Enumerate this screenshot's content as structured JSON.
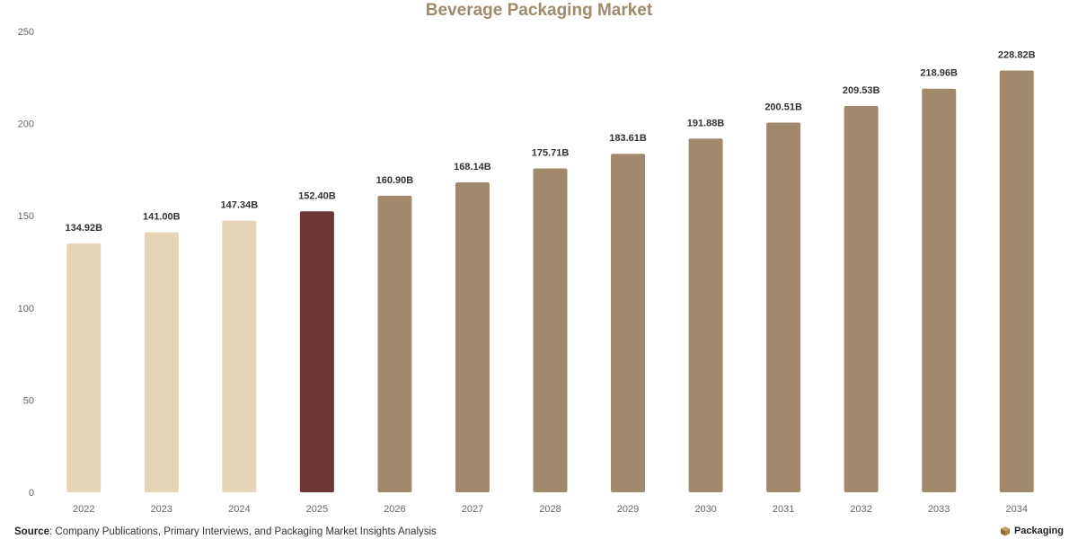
{
  "chart_data": {
    "type": "bar",
    "title": "Beverage Packaging Market",
    "xlabel": "",
    "ylabel": "",
    "categories": [
      "2022",
      "2023",
      "2024",
      "2025",
      "2026",
      "2027",
      "2028",
      "2029",
      "2030",
      "2031",
      "2032",
      "2033",
      "2034"
    ],
    "values": [
      134.92,
      141.0,
      147.34,
      152.4,
      160.9,
      168.14,
      175.71,
      183.61,
      191.88,
      200.51,
      209.53,
      218.96,
      228.82
    ],
    "data_labels": [
      "134.92B",
      "141.00B",
      "147.34B",
      "152.40B",
      "160.90B",
      "168.14B",
      "175.71B",
      "183.61B",
      "191.88B",
      "200.51B",
      "209.53B",
      "218.96B",
      "228.82B"
    ],
    "bar_colors": [
      "#e6d4b7",
      "#e6d4b7",
      "#e6d4b7",
      "#6e3737",
      "#a08a6b",
      "#a08a6b",
      "#a08a6b",
      "#a08a6b",
      "#a08a6b",
      "#a08a6b",
      "#a08a6b",
      "#a08a6b",
      "#a08a6b"
    ],
    "ylim": [
      0,
      250
    ],
    "yticks": [
      0,
      50,
      100,
      150,
      200,
      250
    ],
    "grid": false,
    "legend": "none"
  },
  "colors": {
    "title": "#a08a6b",
    "axis_text": "#666666",
    "label_text": "#333333"
  },
  "footer": {
    "source_label": "Source",
    "source_text": ": Company Publications, Primary Interviews, and Packaging Market Insights Analysis",
    "brand": "Packaging"
  }
}
